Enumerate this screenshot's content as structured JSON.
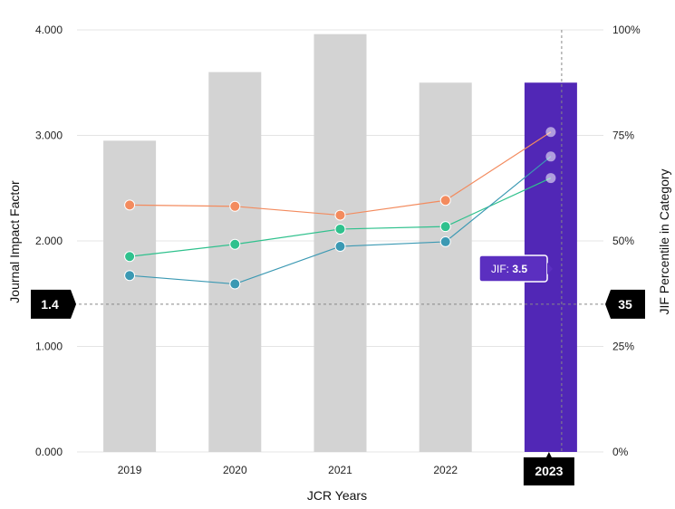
{
  "chart_data": {
    "type": "bar",
    "title": "",
    "xlabel": "JCR Years",
    "ylabel": "Journal Impact Factor",
    "y2label": "JIF Percentile in Category",
    "categories": [
      "2019",
      "2020",
      "2021",
      "2022",
      "2023"
    ],
    "ylim": [
      0,
      4
    ],
    "y_ticks": [
      "0.000",
      "1.000",
      "2.000",
      "3.000",
      "4.000"
    ],
    "y2lim": [
      0,
      100
    ],
    "y2_ticks": [
      "0%",
      "25%",
      "50%",
      "75%",
      "100%"
    ],
    "grid": true,
    "bars": {
      "values": [
        2.95,
        3.6,
        3.96,
        3.5,
        3.5
      ],
      "color": "#d3d3d3",
      "highlight_color": "#5127b6",
      "highlight_index": 4
    },
    "series": [
      {
        "color": "#f38b5e",
        "values": [
          58.5,
          58.2,
          56.1,
          59.6,
          75.8
        ]
      },
      {
        "color": "#2fc18d",
        "values": [
          46.3,
          49.2,
          52.8,
          53.4,
          64.9
        ]
      },
      {
        "color": "#3b99b3",
        "values": [
          41.8,
          39.8,
          48.7,
          49.8,
          70.0
        ]
      }
    ],
    "crosshair": {
      "y_value": 1.4,
      "y_label": "1.4",
      "y2_label": "35",
      "x_label": "2023"
    },
    "tooltip": {
      "label": "JIF: ",
      "value": "3.5"
    }
  }
}
